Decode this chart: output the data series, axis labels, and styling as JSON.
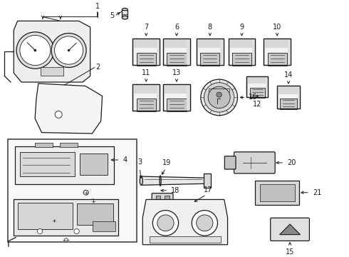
{
  "bg_color": "#ffffff",
  "line_color": "#1a1a1a",
  "text_color": "#1a1a1a",
  "fig_width": 4.9,
  "fig_height": 3.6,
  "dpi": 100,
  "label_fs": 7,
  "arrow_lw": 0.7,
  "comp_lw": 0.9
}
